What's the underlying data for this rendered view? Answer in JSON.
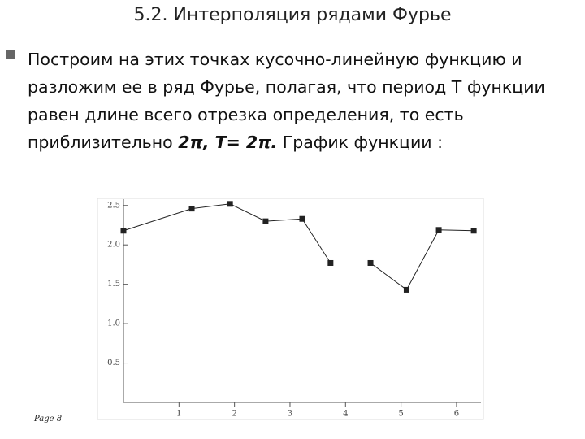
{
  "title": "5.2. Интерполяция рядами Фурье",
  "paragraph": [
    "Построим на этих точках кусочно-линейную функцию и разложим ее в ряд Фурье, полагая, что период T функции равен длине всего отрезка определения, то есть приблизительно ",
    "2π, T= 2π.",
    " График функции :"
  ],
  "page": "Page 8",
  "chart_data": {
    "type": "line",
    "x": [
      0,
      1.23,
      1.92,
      2.56,
      3.22,
      3.73,
      null,
      4.45,
      5.1,
      5.68,
      6.31
    ],
    "values": [
      2.18,
      2.46,
      2.52,
      2.3,
      2.33,
      1.77,
      null,
      1.77,
      1.43,
      2.19,
      2.18
    ],
    "color": "#222222",
    "xlim": [
      0,
      6.44
    ],
    "ylim": [
      0,
      2.58
    ],
    "xticks": [
      1,
      2,
      3,
      4,
      5,
      6
    ],
    "yticks": [
      0.5,
      {
        "value": 1,
        "label": "1.0"
      },
      1.5,
      {
        "value": 2,
        "label": "2.0"
      },
      2.5
    ]
  }
}
